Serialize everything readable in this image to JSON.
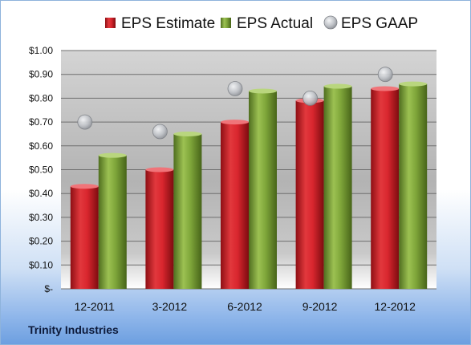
{
  "company": "Trinity Industries",
  "chart_data": {
    "type": "bar",
    "title": "",
    "xlabel": "",
    "ylabel": "",
    "categories": [
      "12-2011",
      "3-2012",
      "6-2012",
      "9-2012",
      "12-2012"
    ],
    "y_tick_labels": [
      "$-",
      "$0.10",
      "$0.20",
      "$0.30",
      "$0.40",
      "$0.50",
      "$0.60",
      "$0.70",
      "$0.80",
      "$0.90",
      "$1.00"
    ],
    "ylim": [
      0,
      1.0
    ],
    "grid": true,
    "legend_position": "top",
    "series": [
      {
        "name": "EPS Estimate",
        "kind": "bar",
        "color": "#d9262e",
        "values": [
          0.43,
          0.5,
          0.7,
          0.79,
          0.84
        ]
      },
      {
        "name": "EPS Actual",
        "kind": "bar",
        "color": "#7fa63a",
        "values": [
          0.56,
          0.65,
          0.83,
          0.85,
          0.86
        ]
      },
      {
        "name": "EPS GAAP",
        "kind": "marker",
        "color": "#b9bcc2",
        "values": [
          0.7,
          0.66,
          0.84,
          0.8,
          0.9
        ]
      }
    ]
  }
}
